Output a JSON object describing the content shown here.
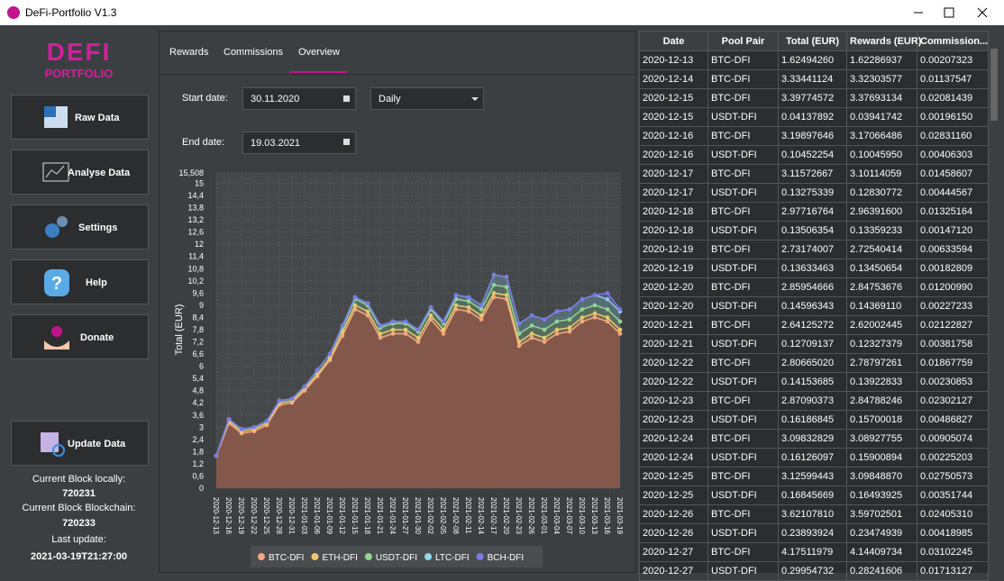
{
  "window": {
    "title": "DeFi-Portfolio V1.3"
  },
  "sidebar": {
    "logo_top": "DEFI",
    "logo_bottom": "PORTFOLIO",
    "buttons": [
      "Raw Data",
      "Analyse Data",
      "Settings",
      "Help",
      "Donate"
    ],
    "update": "Update Data",
    "status": [
      "Current Block locally:",
      "720231",
      "Current Block Blockchain:",
      "720233",
      "Last update:",
      "2021-03-19T21:27:00"
    ]
  },
  "tabs": [
    "Rewards",
    "Commissions",
    "Overview"
  ],
  "filters": {
    "start_label": "Start date:",
    "start": "30.11.2020",
    "interval": "Daily",
    "end_label": "End date:",
    "end": "19.03.2021"
  },
  "chart_data": {
    "type": "stacked-line",
    "y_label": "Total (EUR)",
    "categories": [
      "2020-12-13",
      "2020-12-16",
      "2020-12-19",
      "2020-12-22",
      "2020-12-25",
      "2020-12-28",
      "2020-12-31",
      "2021-01-03",
      "2021-01-06",
      "2021-01-09",
      "2021-01-12",
      "2021-01-15",
      "2021-01-18",
      "2021-01-21",
      "2021-01-24",
      "2021-01-27",
      "2021-01-30",
      "2021-02-02",
      "2021-02-05",
      "2021-02-08",
      "2021-02-11",
      "2021-02-14",
      "2021-02-17",
      "2021-02-20",
      "2021-02-23",
      "2021-02-26",
      "2021-03-01",
      "2021-03-04",
      "2021-03-07",
      "2021-03-10",
      "2021-03-13",
      "2021-03-16",
      "2021-03-19"
    ],
    "series": [
      {
        "name": "BTC-DFI",
        "color": "#f4a582",
        "values": [
          1.6,
          3.2,
          2.7,
          2.8,
          3.1,
          4.1,
          4.2,
          4.8,
          5.5,
          6.3,
          7.5,
          8.8,
          8.5,
          7.4,
          7.6,
          7.6,
          7.2,
          8.3,
          7.6,
          8.8,
          8.7,
          8.3,
          9.4,
          9.3,
          7.0,
          7.4,
          7.2,
          7.6,
          7.7,
          8.2,
          8.4,
          8.2,
          7.6
        ]
      },
      {
        "name": "ETH-DFI",
        "color": "#f2c66d",
        "values": [
          0,
          0.1,
          0.1,
          0.1,
          0.1,
          0.1,
          0.1,
          0.1,
          0.1,
          0.1,
          0.2,
          0.2,
          0.2,
          0.2,
          0.2,
          0.2,
          0.2,
          0.2,
          0.2,
          0.2,
          0.2,
          0.2,
          0.2,
          0.2,
          0.2,
          0.2,
          0.2,
          0.2,
          0.2,
          0.2,
          0.2,
          0.2,
          0.2
        ]
      },
      {
        "name": "USDT-DFI",
        "color": "#8fd68f",
        "values": [
          0,
          0.1,
          0.1,
          0.1,
          0.1,
          0.1,
          0.1,
          0.1,
          0.2,
          0.2,
          0.2,
          0.3,
          0.3,
          0.3,
          0.3,
          0.3,
          0.3,
          0.3,
          0.3,
          0.3,
          0.3,
          0.3,
          0.4,
          0.4,
          0.4,
          0.4,
          0.4,
          0.4,
          0.4,
          0.4,
          0.4,
          0.4,
          0.4
        ]
      },
      {
        "name": "LTC-DFI",
        "color": "#8fd8ea",
        "values": [
          0,
          0,
          0,
          0,
          0,
          0,
          0,
          0,
          0,
          0,
          0.1,
          0.1,
          0.1,
          0.1,
          0.1,
          0.1,
          0.1,
          0.1,
          0.1,
          0.2,
          0.2,
          0.2,
          0.5,
          0.5,
          0.5,
          0.5,
          0.5,
          0.5,
          0.5,
          0.5,
          0.5,
          0.5,
          0.5
        ]
      },
      {
        "name": "BCH-DFI",
        "color": "#7a7ae8",
        "values": [
          0,
          0,
          0,
          0,
          0,
          0,
          0,
          0,
          0,
          0,
          0,
          0,
          0,
          0,
          0,
          0,
          0,
          0,
          0,
          0,
          0,
          0,
          0,
          0,
          0,
          0,
          0,
          0,
          0,
          0,
          0,
          0.3,
          0.1
        ]
      }
    ],
    "ylim": [
      0,
      15.508
    ],
    "yticks": [
      0,
      {
        "value": 0.6,
        "label": "0,6"
      },
      {
        "value": 1.2,
        "label": "1,2"
      },
      {
        "value": 1.8,
        "label": "1,8"
      },
      {
        "value": 2.4,
        "label": "2,4"
      },
      3,
      {
        "value": 3.6,
        "label": "3,6"
      },
      {
        "value": 4.2,
        "label": "4,2"
      },
      {
        "value": 4.8,
        "label": "4,8"
      },
      {
        "value": 5.4,
        "label": "5,4"
      },
      6,
      {
        "value": 6.6,
        "label": "6,6"
      },
      {
        "value": 7.2,
        "label": "7,2"
      },
      {
        "value": 7.8,
        "label": "7,8"
      },
      {
        "value": 8.4,
        "label": "8,4"
      },
      9,
      {
        "value": 9.6,
        "label": "9,6"
      },
      {
        "value": 10.2,
        "label": "10,2"
      },
      {
        "value": 10.8,
        "label": "10,8"
      },
      {
        "value": 11.4,
        "label": "11,4"
      },
      12,
      {
        "value": 12.6,
        "label": "12,6"
      },
      {
        "value": 13.2,
        "label": "13,2"
      },
      {
        "value": 13.8,
        "label": "13,8"
      },
      {
        "value": 14.4,
        "label": "14,4"
      },
      15,
      {
        "value": 15.508,
        "label": "15,508"
      }
    ],
    "grid": true,
    "legend": "bottom"
  },
  "table": {
    "columns": [
      "Date",
      "Pool Pair",
      "Total (EUR)",
      "Rewards (EUR)",
      "Commission..."
    ],
    "rows": [
      [
        "2020-12-13",
        "BTC-DFI",
        "1.62494260",
        "1.62286937",
        "0.00207323"
      ],
      [
        "2020-12-14",
        "BTC-DFI",
        "3.33441124",
        "3.32303577",
        "0.01137547"
      ],
      [
        "2020-12-15",
        "BTC-DFI",
        "3.39774572",
        "3.37693134",
        "0.02081439"
      ],
      [
        "2020-12-15",
        "USDT-DFI",
        "0.04137892",
        "0.03941742",
        "0.00196150"
      ],
      [
        "2020-12-16",
        "BTC-DFI",
        "3.19897646",
        "3.17066486",
        "0.02831160"
      ],
      [
        "2020-12-16",
        "USDT-DFI",
        "0.10452254",
        "0.10045950",
        "0.00406303"
      ],
      [
        "2020-12-17",
        "BTC-DFI",
        "3.11572667",
        "3.10114059",
        "0.01458607"
      ],
      [
        "2020-12-17",
        "USDT-DFI",
        "0.13275339",
        "0.12830772",
        "0.00444567"
      ],
      [
        "2020-12-18",
        "BTC-DFI",
        "2.97716764",
        "2.96391600",
        "0.01325164"
      ],
      [
        "2020-12-18",
        "USDT-DFI",
        "0.13506354",
        "0.13359233",
        "0.00147120"
      ],
      [
        "2020-12-19",
        "BTC-DFI",
        "2.73174007",
        "2.72540414",
        "0.00633594"
      ],
      [
        "2020-12-19",
        "USDT-DFI",
        "0.13633463",
        "0.13450654",
        "0.00182809"
      ],
      [
        "2020-12-20",
        "BTC-DFI",
        "2.85954666",
        "2.84753676",
        "0.01200990"
      ],
      [
        "2020-12-20",
        "USDT-DFI",
        "0.14596343",
        "0.14369110",
        "0.00227233"
      ],
      [
        "2020-12-21",
        "BTC-DFI",
        "2.64125272",
        "2.62002445",
        "0.02122827"
      ],
      [
        "2020-12-21",
        "USDT-DFI",
        "0.12709137",
        "0.12327379",
        "0.00381758"
      ],
      [
        "2020-12-22",
        "BTC-DFI",
        "2.80665020",
        "2.78797261",
        "0.01867759"
      ],
      [
        "2020-12-22",
        "USDT-DFI",
        "0.14153685",
        "0.13922833",
        "0.00230853"
      ],
      [
        "2020-12-23",
        "BTC-DFI",
        "2.87090373",
        "2.84788246",
        "0.02302127"
      ],
      [
        "2020-12-23",
        "USDT-DFI",
        "0.16186845",
        "0.15700018",
        "0.00486827"
      ],
      [
        "2020-12-24",
        "BTC-DFI",
        "3.09832829",
        "3.08927755",
        "0.00905074"
      ],
      [
        "2020-12-24",
        "USDT-DFI",
        "0.16126097",
        "0.15900894",
        "0.00225203"
      ],
      [
        "2020-12-25",
        "BTC-DFI",
        "3.12599443",
        "3.09848870",
        "0.02750573"
      ],
      [
        "2020-12-25",
        "USDT-DFI",
        "0.16845669",
        "0.16493925",
        "0.00351744"
      ],
      [
        "2020-12-26",
        "BTC-DFI",
        "3.62107810",
        "3.59702501",
        "0.02405310"
      ],
      [
        "2020-12-26",
        "USDT-DFI",
        "0.23893924",
        "0.23474939",
        "0.00418985"
      ],
      [
        "2020-12-27",
        "BTC-DFI",
        "4.17511979",
        "4.14409734",
        "0.03102245"
      ],
      [
        "2020-12-27",
        "USDT-DFI",
        "0.29954732",
        "0.28241606",
        "0.01713127"
      ]
    ]
  }
}
